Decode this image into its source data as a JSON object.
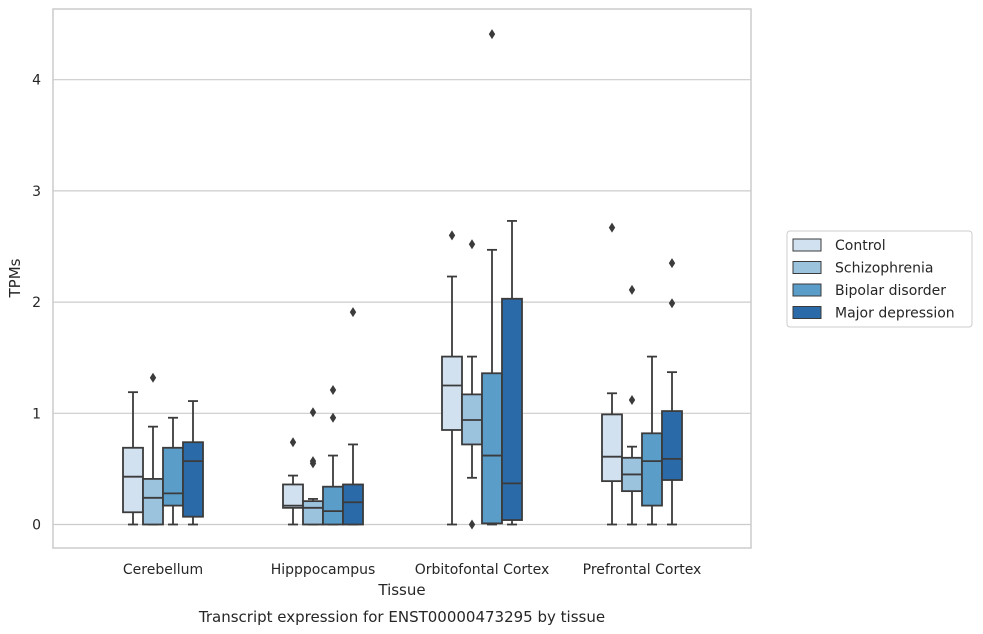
{
  "caption": "Transcript expression for ENST00000473295 by tissue",
  "chart_data": {
    "type": "box",
    "title": "",
    "xlabel": "Tissue",
    "ylabel": "TPMs",
    "ylim": [
      -0.22,
      4.6
    ],
    "yticks": [
      0,
      1,
      2,
      3,
      4
    ],
    "grid": "horizontal",
    "legend_position": "right",
    "categories": [
      "Cerebellum",
      "Hipppocampus",
      "Orbitofontal Cortex",
      "Prefrontal Cortex"
    ],
    "series": [
      {
        "name": "Control",
        "color": "#d1e1f0",
        "boxes": [
          {
            "whisker_low": 0.0,
            "q1": 0.11,
            "median": 0.43,
            "q3": 0.69,
            "whisker_high": 1.19,
            "outliers": []
          },
          {
            "whisker_low": 0.0,
            "q1": 0.15,
            "median": 0.17,
            "q3": 0.36,
            "whisker_high": 0.44,
            "outliers": [
              0.74
            ]
          },
          {
            "whisker_low": 0.0,
            "q1": 0.85,
            "median": 1.25,
            "q3": 1.51,
            "whisker_high": 2.23,
            "outliers": [
              2.6
            ]
          },
          {
            "whisker_low": 0.0,
            "q1": 0.39,
            "median": 0.61,
            "q3": 0.99,
            "whisker_high": 1.18,
            "outliers": [
              2.67
            ]
          }
        ]
      },
      {
        "name": "Schizophrenia",
        "color": "#9cc3de",
        "boxes": [
          {
            "whisker_low": 0.0,
            "q1": 0.0,
            "median": 0.24,
            "q3": 0.41,
            "whisker_high": 0.88,
            "outliers": [
              1.32
            ]
          },
          {
            "whisker_low": 0.0,
            "q1": 0.0,
            "median": 0.15,
            "q3": 0.21,
            "whisker_high": 0.23,
            "outliers": [
              0.55,
              0.57,
              1.01
            ]
          },
          {
            "whisker_low": 0.42,
            "q1": 0.72,
            "median": 0.94,
            "q3": 1.17,
            "whisker_high": 1.51,
            "outliers": [
              0.0,
              2.52
            ]
          },
          {
            "whisker_low": 0.0,
            "q1": 0.3,
            "median": 0.45,
            "q3": 0.6,
            "whisker_high": 0.7,
            "outliers": [
              1.12,
              2.11
            ]
          }
        ]
      },
      {
        "name": "Bipolar disorder",
        "color": "#5a9dc9",
        "boxes": [
          {
            "whisker_low": 0.0,
            "q1": 0.17,
            "median": 0.28,
            "q3": 0.69,
            "whisker_high": 0.96,
            "outliers": []
          },
          {
            "whisker_low": 0.0,
            "q1": 0.0,
            "median": 0.12,
            "q3": 0.34,
            "whisker_high": 0.62,
            "outliers": [
              0.96,
              1.21
            ]
          },
          {
            "whisker_low": 0.0,
            "q1": 0.01,
            "median": 0.62,
            "q3": 1.36,
            "whisker_high": 2.47,
            "outliers": [
              4.41
            ]
          },
          {
            "whisker_low": 0.0,
            "q1": 0.17,
            "median": 0.57,
            "q3": 0.82,
            "whisker_high": 1.51,
            "outliers": []
          }
        ]
      },
      {
        "name": "Major depression",
        "color": "#2a6aa8",
        "boxes": [
          {
            "whisker_low": 0.0,
            "q1": 0.07,
            "median": 0.57,
            "q3": 0.74,
            "whisker_high": 1.11,
            "outliers": []
          },
          {
            "whisker_low": 0.0,
            "q1": 0.0,
            "median": 0.2,
            "q3": 0.36,
            "whisker_high": 0.72,
            "outliers": [
              1.91
            ]
          },
          {
            "whisker_low": 0.0,
            "q1": 0.04,
            "median": 0.37,
            "q3": 2.03,
            "whisker_high": 2.73,
            "outliers": []
          },
          {
            "whisker_low": 0.0,
            "q1": 0.4,
            "median": 0.59,
            "q3": 1.02,
            "whisker_high": 1.37,
            "outliers": [
              1.99,
              2.35
            ]
          }
        ]
      }
    ]
  }
}
